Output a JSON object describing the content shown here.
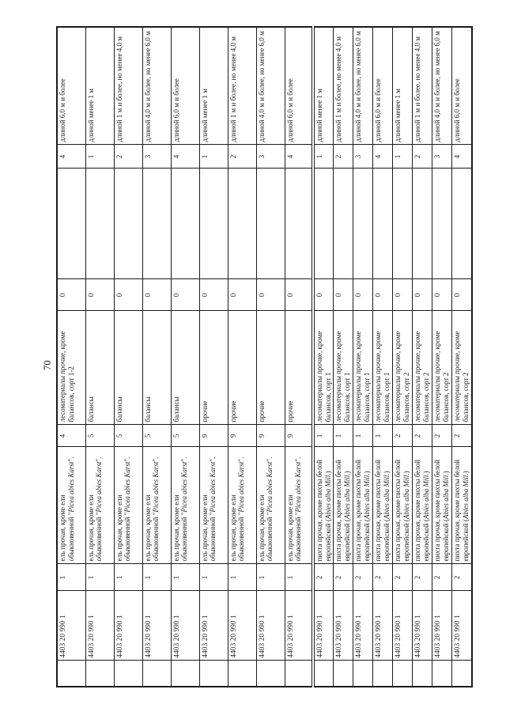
{
  "page_number": "70",
  "colors": {
    "ink": "#1b1b1b",
    "paper": "#ffffff"
  },
  "table": {
    "divider_after_row_index": 8,
    "rows": [
      {
        "code": "4403 20 990 1",
        "group_no": "1",
        "species_prefix": "ель прочая, кроме ели обыкновенной \"",
        "species_italic": "Picea abies Karst",
        "species_suffix": "\".",
        "sort_no": "4",
        "sort_name": "лесоматериалы прочие, кроме балансов, сорт 1-2",
        "zero": "0",
        "length_no": "4",
        "length_name": "длиной 6,0 м и более"
      },
      {
        "code": "4403 20 990 1",
        "group_no": "1",
        "species_prefix": "ель прочая, кроме ели обыкновенной \"",
        "species_italic": "Picea abies Karst",
        "species_suffix": "\".",
        "sort_no": "5",
        "sort_name": "балансы",
        "zero": "0",
        "length_no": "1",
        "length_name": "длиной менее 1 м"
      },
      {
        "code": "4403 20 990 1",
        "group_no": "1",
        "species_prefix": "ель прочая, кроме ели обыкновенной \"",
        "species_italic": "Picea abies Karst",
        "species_suffix": "\".",
        "sort_no": "5",
        "sort_name": "балансы",
        "zero": "0",
        "length_no": "2",
        "length_name": "длиной 1 м и более, но менее 4,0 м"
      },
      {
        "code": "4403 20 990 1",
        "group_no": "1",
        "species_prefix": "ель прочая, кроме ели обыкновенной \"",
        "species_italic": "Picea abies Karst",
        "species_suffix": "\".",
        "sort_no": "5",
        "sort_name": "балансы",
        "zero": "0",
        "length_no": "3",
        "length_name": "длиной 4,0 м и более, но менее 6,0 м"
      },
      {
        "code": "4403 20 990 1",
        "group_no": "1",
        "species_prefix": "ель прочая, кроме ели обыкновенной \"",
        "species_italic": "Picea abies Karst",
        "species_suffix": "\".",
        "sort_no": "5",
        "sort_name": "балансы",
        "zero": "0",
        "length_no": "4",
        "length_name": "длиной 6,0 м и более"
      },
      {
        "code": "4403 20 990 1",
        "group_no": "1",
        "species_prefix": "ель прочая, кроме ели обыкновенной \"",
        "species_italic": "Picea abies Karst",
        "species_suffix": "\".",
        "sort_no": "9",
        "sort_name": "прочие",
        "zero": "0",
        "length_no": "1",
        "length_name": "длиной менее 1 м"
      },
      {
        "code": "4403 20 990 1",
        "group_no": "1",
        "species_prefix": "ель прочая, кроме ели обыкновенной \"",
        "species_italic": "Picea abies Karst",
        "species_suffix": "\".",
        "sort_no": "9",
        "sort_name": "прочие",
        "zero": "0",
        "length_no": "2",
        "length_name": "длиной 1 м и более, но менее 4,0 м"
      },
      {
        "code": "4403 20 990 1",
        "group_no": "1",
        "species_prefix": "ель прочая, кроме ели обыкновенной \"",
        "species_italic": "Picea abies Karst",
        "species_suffix": "\".",
        "sort_no": "9",
        "sort_name": "прочие",
        "zero": "0",
        "length_no": "3",
        "length_name": "длиной 4,0 м и более, но менее 6,0 м"
      },
      {
        "code": "4403 20 990 1",
        "group_no": "1",
        "species_prefix": "ель прочая, кроме ели обыкновенной \"",
        "species_italic": "Picea abies Karst",
        "species_suffix": "\".",
        "sort_no": "9",
        "sort_name": "прочие",
        "zero": "0",
        "length_no": "4",
        "length_name": "длиной 6,0 м и более"
      },
      {
        "code": "4403 20 990 1",
        "group_no": "2",
        "species_prefix": "пихта прочая, кроме пихты белой европейской (",
        "species_italic": "Abies alba Mill.",
        "species_suffix": ")",
        "sort_no": "1",
        "sort_name": "лесоматериалы прочие, кроме балансов, сорт 1",
        "zero": "0",
        "length_no": "1",
        "length_name": "длиной менее 1 м"
      },
      {
        "code": "4403 20 990 1",
        "group_no": "2",
        "species_prefix": "пихта прочая, кроме пихты белой европейской (",
        "species_italic": "Abies alba Mill.",
        "species_suffix": ")",
        "sort_no": "1",
        "sort_name": "лесоматериалы прочие, кроме балансов, сорт 1",
        "zero": "0",
        "length_no": "2",
        "length_name": "длиной 1 м и более, но менее 4,0 м"
      },
      {
        "code": "4403 20 990 1",
        "group_no": "2",
        "species_prefix": "пихта прочая, кроме пихты белой европейской (",
        "species_italic": "Abies alba Mill.",
        "species_suffix": ")",
        "sort_no": "1",
        "sort_name": "лесоматериалы прочие, кроме балансов, сорт 1",
        "zero": "0",
        "length_no": "3",
        "length_name": "длиной 4,0 м и более, но менее 6,0 м"
      },
      {
        "code": "4403 20 990 1",
        "group_no": "2",
        "species_prefix": "пихта прочая, кроме пихты белой европейской (",
        "species_italic": "Abies alba Mill.",
        "species_suffix": ")",
        "sort_no": "1",
        "sort_name": "лесоматериалы прочие, кроме балансов, сорт 1",
        "zero": "0",
        "length_no": "4",
        "length_name": "длиной 6,0 м и более"
      },
      {
        "code": "4403 20 990 1",
        "group_no": "2",
        "species_prefix": "пихта прочая, кроме пихты белой европейской (",
        "species_italic": "Abies alba Mill.",
        "species_suffix": ")",
        "sort_no": "2",
        "sort_name": "лесоматериалы прочие, кроме балансов, сорт 2",
        "zero": "0",
        "length_no": "1",
        "length_name": "длиной менее 1 м"
      },
      {
        "code": "4403 20 990 1",
        "group_no": "2",
        "species_prefix": "пихта прочая, кроме пихты белой европейской (",
        "species_italic": "Abies alba Mill.",
        "species_suffix": ")",
        "sort_no": "2",
        "sort_name": "лесоматериалы прочие, кроме балансов, сорт 2",
        "zero": "0",
        "length_no": "2",
        "length_name": "длиной 1 м и более, но менее 4,0 м"
      },
      {
        "code": "4403 20 990 1",
        "group_no": "2",
        "species_prefix": "пихта прочая, кроме пихты белой европейской (",
        "species_italic": "Abies alba Mill.",
        "species_suffix": ")",
        "sort_no": "2",
        "sort_name": "лесоматериалы прочие, кроме балансов, сорт 2",
        "zero": "0",
        "length_no": "3",
        "length_name": "длиной 4,0 м и более, но менее 6,0 м"
      },
      {
        "code": "4403 20 990 1",
        "group_no": "2",
        "species_prefix": "пихта прочая, кроме пихты белой европейской (",
        "species_italic": "Abies alba Mill.",
        "species_suffix": ")",
        "sort_no": "2",
        "sort_name": "лесоматериалы прочие, кроме балансов, сорт 2",
        "zero": "0",
        "length_no": "4",
        "length_name": "длиной 6,0 м и более"
      }
    ]
  }
}
